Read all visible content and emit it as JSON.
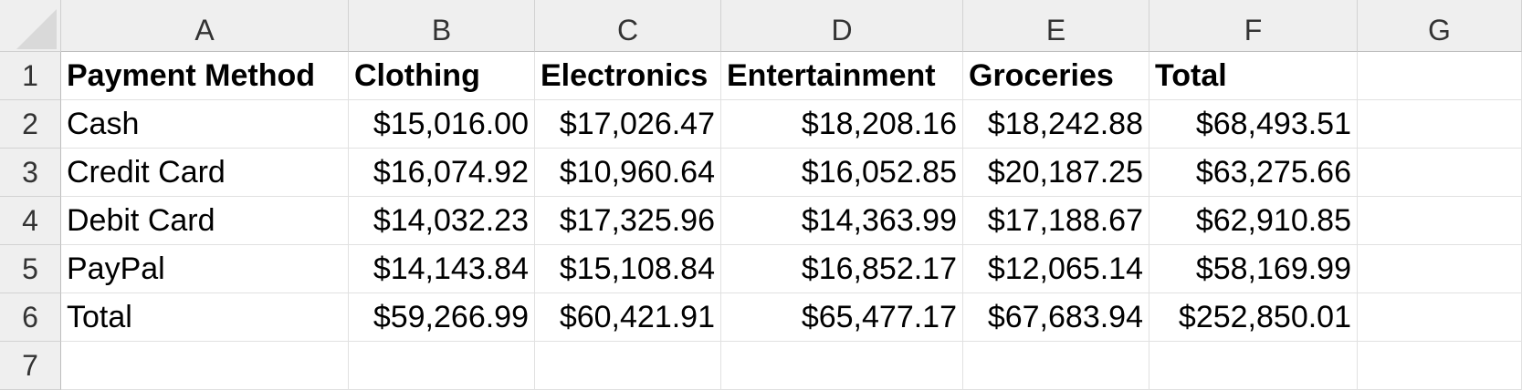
{
  "columns": [
    "A",
    "B",
    "C",
    "D",
    "E",
    "F",
    "G"
  ],
  "rows": [
    "1",
    "2",
    "3",
    "4",
    "5",
    "6",
    "7"
  ],
  "table": {
    "headers": [
      "Payment Method",
      "Clothing",
      "Electronics",
      "Entertainment",
      "Groceries",
      "Total"
    ],
    "data": [
      [
        "Cash",
        "$15,016.00",
        "$17,026.47",
        "$18,208.16",
        "$18,242.88",
        "$68,493.51"
      ],
      [
        "Credit Card",
        "$16,074.92",
        "$10,960.64",
        "$16,052.85",
        "$20,187.25",
        "$63,275.66"
      ],
      [
        "Debit Card",
        "$14,032.23",
        "$17,325.96",
        "$14,363.99",
        "$17,188.67",
        "$62,910.85"
      ],
      [
        "PayPal",
        "$14,143.84",
        "$15,108.84",
        "$16,852.17",
        "$12,065.14",
        "$58,169.99"
      ],
      [
        "Total",
        "$59,266.99",
        "$60,421.91",
        "$65,477.17",
        "$67,683.94",
        "$252,850.01"
      ]
    ]
  }
}
